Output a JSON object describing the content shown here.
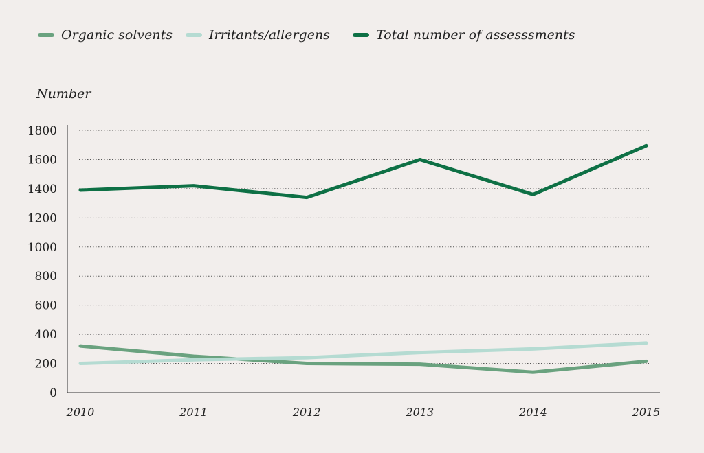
{
  "chart_data": {
    "type": "line",
    "title": "",
    "ylabel": "Number",
    "xlabel": "",
    "categories": [
      "2010",
      "2011",
      "2012",
      "2013",
      "2014",
      "2015"
    ],
    "ylim": [
      0,
      1800
    ],
    "yticks": [
      "0",
      "200",
      "400",
      "600",
      "800",
      "1000",
      "1200",
      "1400",
      "1600",
      "1800"
    ],
    "grid": true,
    "legend_position": "top-left",
    "series": [
      {
        "name": "Organic solvents",
        "color": "#6aa27f",
        "values": [
          320,
          250,
          200,
          195,
          140,
          215
        ]
      },
      {
        "name": "Irritants/allergens",
        "color": "#b5dbd2",
        "values": [
          200,
          225,
          240,
          275,
          300,
          340
        ]
      },
      {
        "name": "Total number of assesssments",
        "color": "#0e7045",
        "values": [
          1390,
          1420,
          1340,
          1600,
          1360,
          1695
        ]
      }
    ]
  }
}
